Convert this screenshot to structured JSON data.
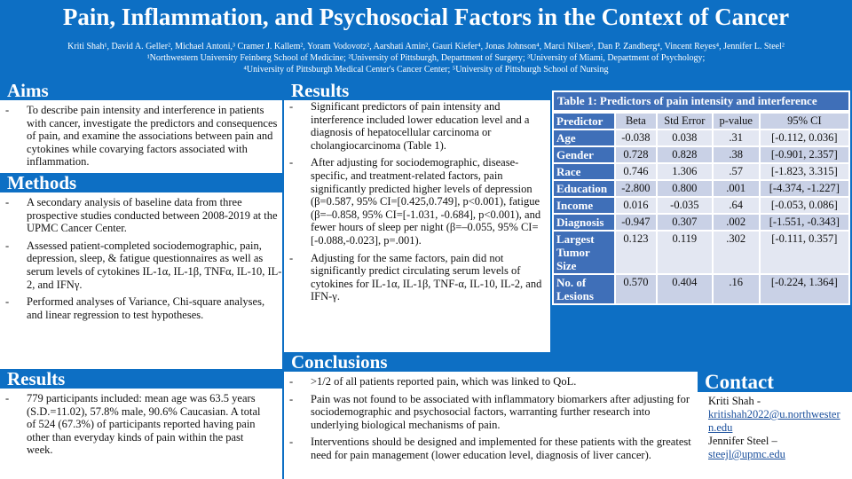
{
  "title": "Pain, Inflammation, and Psychosocial Factors in the Context of Cancer",
  "authors": "Kriti Shah¹, David A. Geller², Michael Antoni,³ Cramer J. Kallem², Yoram Vodovotz², Aarshati Amin², Gauri Kiefer⁴, Jonas Johnson⁴, Marci Nilsen⁵, Dan P. Zandberg⁴, Vincent Reyes⁴, Jennifer L. Steel²",
  "affil1": "¹Northwestern University Feinberg School of Medicine; ²University of Pittsburgh, Department of Surgery; ³University of Miami, Department of Psychology;",
  "affil2": "⁴University of Pittsburgh Medical Center's Cancer Center; ⁵University of Pittsburgh School of Nursing",
  "aims": {
    "heading": "Aims",
    "items": [
      "To describe pain intensity and interference in patients with cancer, investigate the predictors and consequences of pain, and examine the associations between pain and cytokines while covarying factors associated with inflammation."
    ]
  },
  "methods": {
    "heading": "Methods",
    "items": [
      "A secondary analysis of baseline data from three prospective studies conducted between 2008-2019 at the UPMC Cancer Center.",
      "Assessed patient-completed sociodemographic, pain, depression, sleep, & fatigue questionnaires as well as serum levels of cytokines IL-1α, IL-1β, TNFα, IL-10, IL-2, and IFNγ.",
      "Performed analyses of Variance, Chi-square analyses, and linear regression to test hypotheses."
    ]
  },
  "results_left": {
    "heading": "Results",
    "items": [
      "779 participants included: mean age was 63.5 years (S.D.=11.02), 57.8% male, 90.6% Caucasian. A total of 524 (67.3%) of participants reported having pain other than everyday kinds of pain within the past week."
    ]
  },
  "results_mid": {
    "heading": "Results",
    "items": [
      "Significant predictors of pain intensity and interference included lower education level and a diagnosis of hepatocellular carcinoma or cholangiocarcinoma (Table 1).",
      "After adjusting for sociodemographic, disease-specific, and treatment-related factors, pain significantly predicted higher levels of depression (β=0.587, 95% CI=[0.425,0.749], p<0.001), fatigue (β=–0.858, 95% CI=[-1.031, -0.684], p<0.001), and fewer hours of sleep per night (β=–0.055, 95% CI=[-0.088,-0.023], p=.001).",
      "Adjusting for the same factors, pain did not significantly predict circulating serum levels of cytokines for IL-1α, IL-1β, TNF-α, IL-10, IL-2, and IFN-γ."
    ]
  },
  "table": {
    "caption": "Table 1:  Predictors of pain intensity and interference",
    "headers": [
      "Predictor",
      "Beta",
      "Std Error",
      "p-value",
      "95% CI"
    ],
    "rows": [
      [
        "Age",
        "-0.038",
        "0.038",
        ".31",
        "[-0.112, 0.036]"
      ],
      [
        "Gender",
        "0.728",
        "0.828",
        ".38",
        "[-0.901, 2.357]"
      ],
      [
        "Race",
        "0.746",
        "1.306",
        ".57",
        "[-1.823, 3.315]"
      ],
      [
        "Education",
        "-2.800",
        "0.800",
        ".001",
        "[-4.374, -1.227]"
      ],
      [
        "Income",
        "0.016",
        "-0.035",
        ".64",
        "[-0.053, 0.086]"
      ],
      [
        "Diagnosis",
        "-0.947",
        "0.307",
        ".002",
        "[-1.551, -0.343]"
      ],
      [
        "Largest Tumor Size",
        "0.123",
        "0.119",
        ".302",
        "[-0.111, 0.357]"
      ],
      [
        "No. of Lesions",
        "0.570",
        "0.404",
        ".16",
        "[-0.224, 1.364]"
      ]
    ]
  },
  "conclusions": {
    "heading": "Conclusions",
    "items": [
      ">1/2 of all patients reported pain, which was linked to QoL.",
      "Pain was not found to be associated with inflammatory biomarkers after adjusting for sociodemographic and psychosocial factors, warranting further research into underlying biological mechanisms of pain.",
      "Interventions should be designed and implemented for these patients with the greatest need for pain management (lower education level, diagnosis of liver cancer)."
    ]
  },
  "contact": {
    "heading": "Contact",
    "name1": "Kriti Shah -",
    "email1": "kritishah2022@u.northwestern.edu",
    "name2": "Jennifer Steel –",
    "email2": "steejl@upmc.edu"
  }
}
